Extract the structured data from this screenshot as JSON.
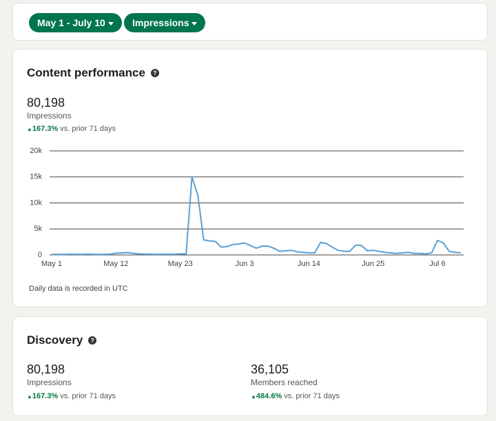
{
  "filters": [
    "May 1 - July 10",
    "Impressions"
  ],
  "content_performance": {
    "title": "Content performance",
    "metric_value": "80,198",
    "metric_label": "Impressions",
    "change": "167.3%",
    "change_suffix": "vs. prior 71 days",
    "footnote": "Daily data is recorded in UTC"
  },
  "chart_data": {
    "type": "line",
    "categories": [
      "May 1",
      null,
      null,
      null,
      null,
      null,
      null,
      null,
      null,
      null,
      null,
      "May 12",
      null,
      null,
      null,
      null,
      null,
      null,
      null,
      null,
      null,
      null,
      "May 23",
      null,
      null,
      null,
      null,
      null,
      null,
      null,
      null,
      null,
      null,
      "Jun 3",
      null,
      null,
      null,
      null,
      null,
      null,
      null,
      null,
      null,
      null,
      "Jun 14",
      null,
      null,
      null,
      null,
      null,
      null,
      null,
      null,
      null,
      null,
      "Jun 25",
      null,
      null,
      null,
      null,
      null,
      null,
      null,
      null,
      null,
      null,
      "Jul 6",
      null,
      null,
      null,
      null
    ],
    "values": [
      100,
      120,
      100,
      150,
      130,
      120,
      150,
      130,
      100,
      120,
      150,
      350,
      400,
      450,
      300,
      200,
      150,
      150,
      120,
      150,
      130,
      150,
      200,
      200,
      15000,
      11500,
      2900,
      2700,
      2600,
      1500,
      1600,
      2000,
      2100,
      2300,
      1800,
      1300,
      1700,
      1700,
      1300,
      700,
      800,
      900,
      600,
      500,
      400,
      400,
      2400,
      2200,
      1500,
      900,
      700,
      700,
      1900,
      1800,
      800,
      900,
      700,
      500,
      400,
      300,
      400,
      500,
      300,
      300,
      200,
      400,
      2800,
      2300,
      700,
      500,
      400
    ],
    "color": "#5a9fd4",
    "ylim": [
      0,
      20000
    ],
    "yticks": [
      0,
      {
        "value": 5000,
        "label": "5k"
      },
      {
        "value": 10000,
        "label": "10k"
      },
      {
        "value": 15000,
        "label": "15k"
      },
      {
        "value": 20000,
        "label": "20k"
      }
    ],
    "grid": true
  },
  "discovery": {
    "title": "Discovery",
    "metrics": [
      {
        "value": "80,198",
        "label": "Impressions",
        "change": "167.3%",
        "change_suffix": "vs. prior 71 days"
      },
      {
        "value": "36,105",
        "label": "Members reached",
        "change": "484.6%",
        "change_suffix": "vs. prior 71 days"
      }
    ]
  }
}
